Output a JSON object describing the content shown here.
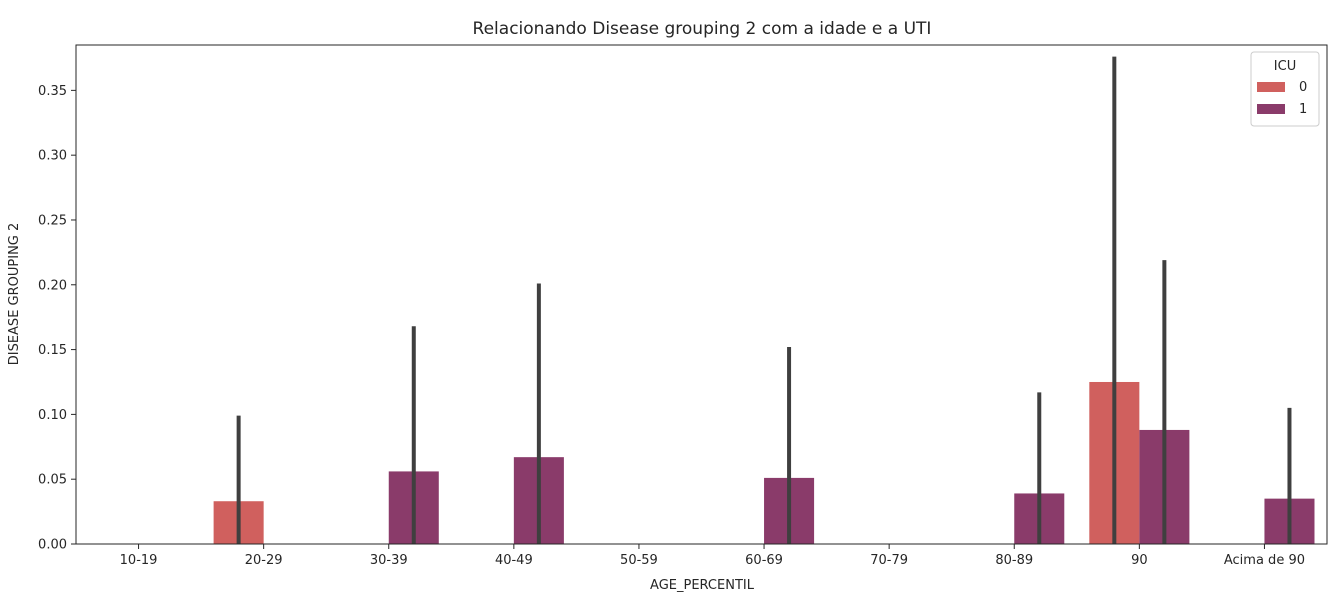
{
  "chart_data": {
    "type": "bar",
    "title": "Relacionando Disease grouping 2 com a idade e a UTI",
    "xlabel": "AGE_PERCENTIL",
    "ylabel": "DISEASE GROUPING 2",
    "categories": [
      "10-19",
      "20-29",
      "30-39",
      "40-49",
      "50-59",
      "60-69",
      "70-79",
      "80-89",
      "90",
      "Acima de 90"
    ],
    "ylim": [
      0,
      0.385
    ],
    "yticks": [
      "0.00",
      "0.05",
      "0.10",
      "0.15",
      "0.20",
      "0.25",
      "0.30",
      "0.35"
    ],
    "legend": {
      "title": "ICU",
      "placement": "top-right"
    },
    "series": [
      {
        "name": "0",
        "color": "#d0605e",
        "values": [
          0,
          0.033,
          0,
          0,
          0,
          0,
          0,
          0,
          0.125,
          0
        ],
        "ci_low": [
          0,
          0,
          0,
          0,
          0,
          0,
          0,
          0,
          0,
          0
        ],
        "ci_high": [
          0,
          0.099,
          0,
          0,
          0,
          0,
          0,
          0,
          0.376,
          0
        ]
      },
      {
        "name": "1",
        "color": "#8a3b6a",
        "values": [
          0,
          0,
          0.056,
          0.067,
          0,
          0.051,
          0,
          0.039,
          0.088,
          0.035
        ],
        "ci_low": [
          0,
          0,
          0,
          0,
          0,
          0,
          0,
          0,
          0,
          0
        ],
        "ci_high": [
          0,
          0,
          0.168,
          0.201,
          0,
          0.152,
          0,
          0.117,
          0.219,
          0.105
        ]
      }
    ]
  }
}
